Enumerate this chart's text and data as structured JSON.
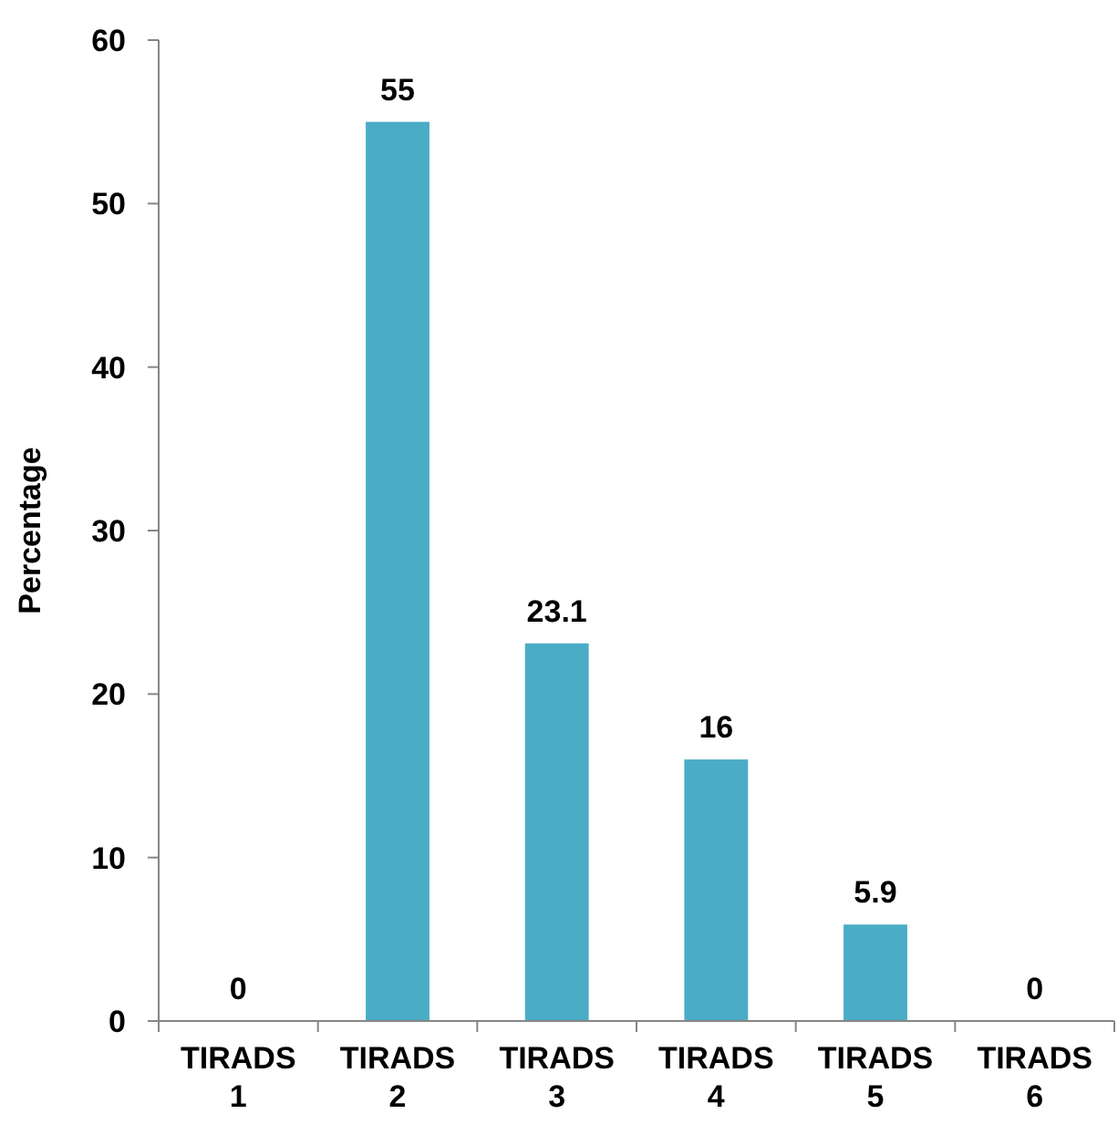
{
  "chart_data": {
    "type": "bar",
    "ylabel": "Percentage",
    "categories": [
      "TIRADS 1",
      "TIRADS 2",
      "TIRADS 3",
      "TIRADS 4",
      "TIRADS 5",
      "TIRADS 6"
    ],
    "values": [
      0,
      55,
      23.1,
      16,
      5.9,
      0
    ],
    "color": "#4bacc6",
    "ylim": [
      0,
      60
    ],
    "yticks": [
      0,
      10,
      20,
      30,
      40,
      50,
      60
    ],
    "grid": false,
    "data_labels": true
  }
}
